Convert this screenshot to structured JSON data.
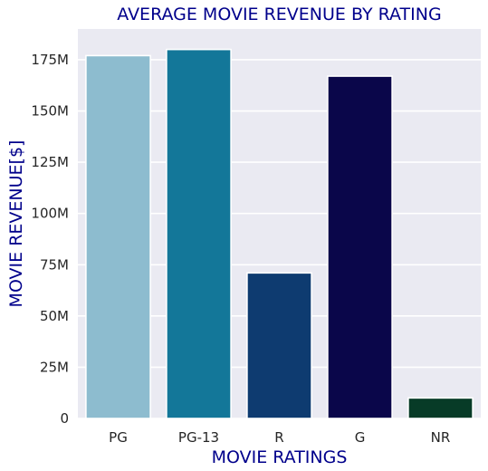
{
  "chart_data": {
    "type": "bar",
    "title": "AVERAGE MOVIE REVENUE BY RATING",
    "xlabel": "MOVIE RATINGS",
    "ylabel": "MOVIE REVENUE[$]",
    "categories": [
      "PG",
      "PG-13",
      "R",
      "G",
      "NR"
    ],
    "values": [
      177000000,
      180000000,
      71000000,
      167000000,
      10000000
    ],
    "colors": [
      "#8dbccf",
      "#137799",
      "#0e3b70",
      "#0a064a",
      "#073b27"
    ],
    "ylim": [
      0,
      190000000
    ],
    "yticks": [
      0,
      25000000,
      50000000,
      75000000,
      100000000,
      125000000,
      150000000,
      175000000
    ],
    "ytick_labels": [
      "0",
      "25M",
      "50M",
      "75M",
      "100M",
      "125M",
      "150M",
      "175M"
    ],
    "grid": true,
    "background": "#eaeaf2",
    "title_color": "#00008b"
  }
}
